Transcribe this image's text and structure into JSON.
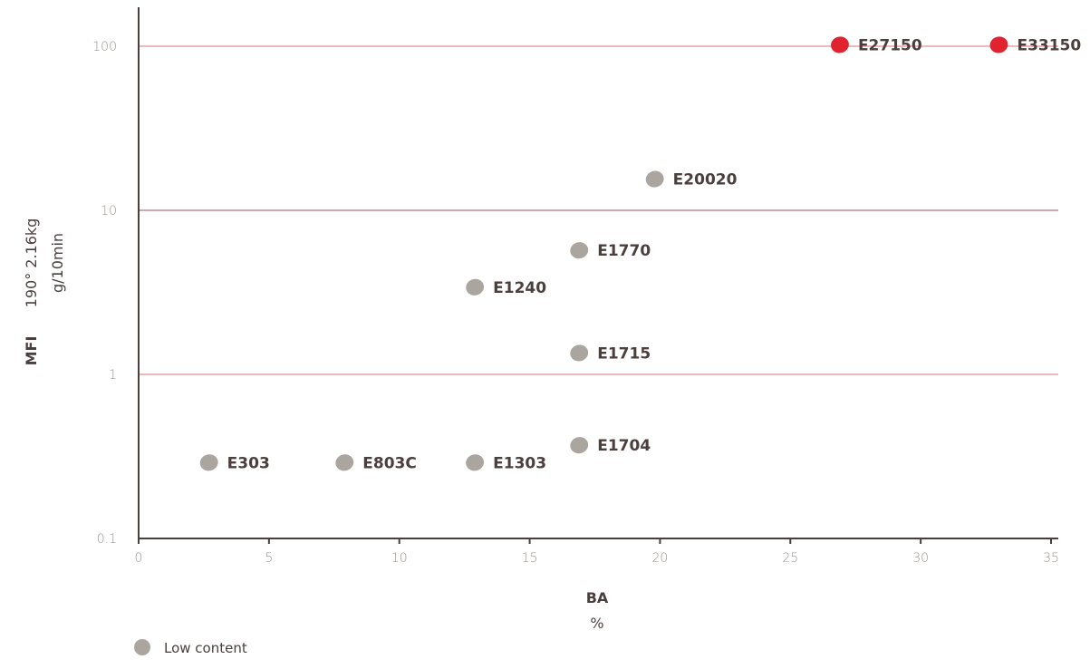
{
  "chart_data": {
    "type": "scatter",
    "xlabel": "BA",
    "xunit": "%",
    "ylabel": "MFI",
    "ylabel_conditions": "190°   2.16kg",
    "yunit": "g/10min",
    "yscale": "log",
    "xlim": [
      0,
      35
    ],
    "ylim": [
      0.1,
      100
    ],
    "x_ticks": [
      0,
      5,
      10,
      15,
      20,
      25,
      30,
      35
    ],
    "x_tick_labels": [
      "0",
      "5",
      "10",
      "15",
      "20",
      "25",
      "30",
      "35"
    ],
    "y_ticks": [
      0.1,
      1,
      10,
      100
    ],
    "y_tick_labels": [
      "0.1",
      "1",
      "10",
      "100"
    ],
    "gridlines_y": [
      1,
      10,
      100
    ],
    "points": [
      {
        "label": "E303",
        "x": 2.7,
        "y": 0.29,
        "group": "low"
      },
      {
        "label": "E803C",
        "x": 7.9,
        "y": 0.29,
        "group": "low"
      },
      {
        "label": "E1303",
        "x": 12.9,
        "y": 0.29,
        "group": "low"
      },
      {
        "label": "E1704",
        "x": 16.9,
        "y": 0.37,
        "group": "low"
      },
      {
        "label": "E1715",
        "x": 16.9,
        "y": 1.35,
        "group": "low"
      },
      {
        "label": "E1240",
        "x": 12.9,
        "y": 3.4,
        "group": "low"
      },
      {
        "label": "E1770",
        "x": 16.9,
        "y": 5.7,
        "group": "low"
      },
      {
        "label": "E20020",
        "x": 19.8,
        "y": 15.5,
        "group": "low"
      },
      {
        "label": "E27150",
        "x": 26.9,
        "y": 102,
        "group": "high"
      },
      {
        "label": "E33150",
        "x": 33.0,
        "y": 102,
        "group": "high"
      }
    ],
    "colors": {
      "low": "#aaa59f",
      "high": "#e1222f",
      "axis": "#4a3f3c",
      "grid_100": "#d8737b",
      "grid_10": "#9e4f5e",
      "grid_1": "#dc6f77"
    },
    "legend": [
      {
        "name": "Low content",
        "group": "low"
      }
    ],
    "legend_position": "bottom-left"
  }
}
